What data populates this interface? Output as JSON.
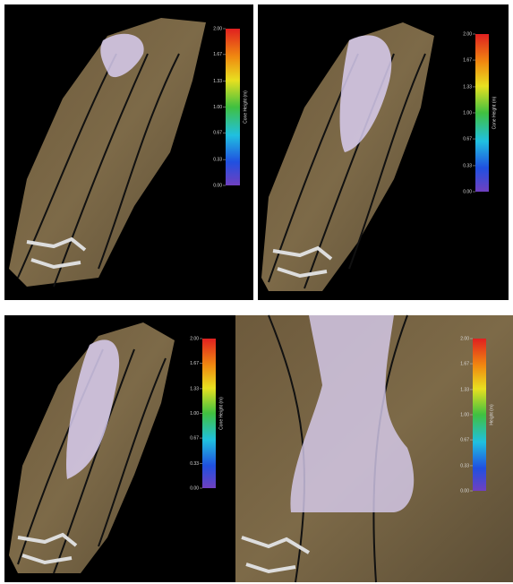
{
  "panels": [
    {
      "colorbar": {
        "label": "Cone Height (m)",
        "ticks": [
          {
            "value": 0,
            "label": "0.00"
          },
          {
            "value": 0.33,
            "label": "0.33"
          },
          {
            "value": 0.67,
            "label": "0.67"
          },
          {
            "value": 1,
            "label": "1.00"
          },
          {
            "value": 1.33,
            "label": "1.33"
          },
          {
            "value": 1.67,
            "label": "1.67"
          },
          {
            "value": 2,
            "label": "2.00"
          }
        ]
      }
    },
    {
      "colorbar": {
        "label": "Cone Height (m)",
        "ticks": [
          {
            "value": 0,
            "label": "0.00"
          },
          {
            "value": 0.33,
            "label": "0.33"
          },
          {
            "value": 0.67,
            "label": "0.67"
          },
          {
            "value": 1,
            "label": "1.00"
          },
          {
            "value": 1.33,
            "label": "1.33"
          },
          {
            "value": 1.67,
            "label": "1.67"
          },
          {
            "value": 2,
            "label": "2.00"
          }
        ]
      }
    },
    {
      "colorbar": {
        "label": "Cone Height (m)",
        "ticks": [
          {
            "value": 0,
            "label": "0.00"
          },
          {
            "value": 0.33,
            "label": "0.33"
          },
          {
            "value": 0.67,
            "label": "0.67"
          },
          {
            "value": 1,
            "label": "1.00"
          },
          {
            "value": 1.33,
            "label": "1.33"
          },
          {
            "value": 1.67,
            "label": "1.67"
          },
          {
            "value": 2,
            "label": "2.00"
          }
        ]
      }
    },
    {
      "colorbar": {
        "label": "Height (m)",
        "ticks": [
          {
            "value": 0,
            "label": "0.00"
          },
          {
            "value": 0.33,
            "label": "0.33"
          },
          {
            "value": 0.67,
            "label": "0.67"
          },
          {
            "value": 1,
            "label": "1.00"
          },
          {
            "value": 1.33,
            "label": "1.33"
          },
          {
            "value": 1.67,
            "label": "1.67"
          },
          {
            "value": 2,
            "label": "2.00"
          }
        ]
      }
    }
  ]
}
